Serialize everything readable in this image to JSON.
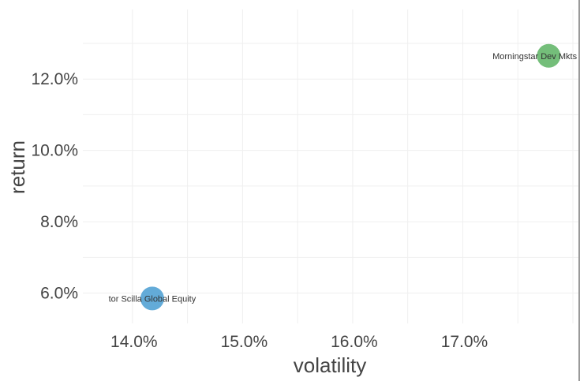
{
  "chart_data": {
    "type": "scatter",
    "xlabel": "volatility",
    "ylabel": "return",
    "x_tick_labels": [
      "14.0%",
      "15.0%",
      "16.0%",
      "17.0%"
    ],
    "y_tick_labels": [
      "6.0%",
      "8.0%",
      "10.0%",
      "12.0%"
    ],
    "x_ticks": [
      14.0,
      15.0,
      16.0,
      17.0
    ],
    "y_ticks": [
      6.0,
      8.0,
      10.0,
      12.0
    ],
    "xlim": [
      13.55,
      18.05
    ],
    "ylim": [
      5.15,
      13.95
    ],
    "grid": true,
    "legend": "none",
    "points": [
      {
        "label": "tor Scilla Global Equity",
        "x": 14.18,
        "y": 5.85,
        "color": "#5ba7d6"
      },
      {
        "label": "Morningstar Dev Mkts LM Ca",
        "x": 17.78,
        "y": 12.65,
        "color": "#6dbb73"
      }
    ]
  }
}
